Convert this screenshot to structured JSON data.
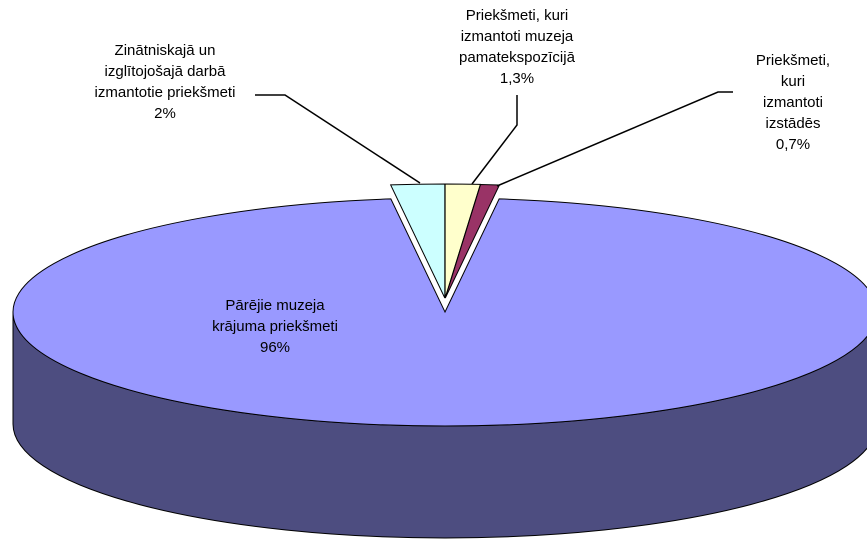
{
  "chart_data": {
    "type": "pie3d",
    "categories": [
      "Priekšmeti, kuri\nizmantoti muzeja\npamatekspozīcijā",
      "Priekšmeti, kuri\nizmantoti izstādēs",
      "Pārējie muzeja\nkrājuma priekšmeti",
      "Zinātniskajā un\nizglītojošajā darbā\nizmantotie priekšmeti"
    ],
    "values": [
      1.3,
      0.7,
      96,
      2
    ],
    "value_labels": [
      "1,3%",
      "0,7%",
      "96%",
      "2%"
    ],
    "colors": [
      "#ffffcc",
      "#993366",
      "#9999ff",
      "#ccffff"
    ]
  }
}
